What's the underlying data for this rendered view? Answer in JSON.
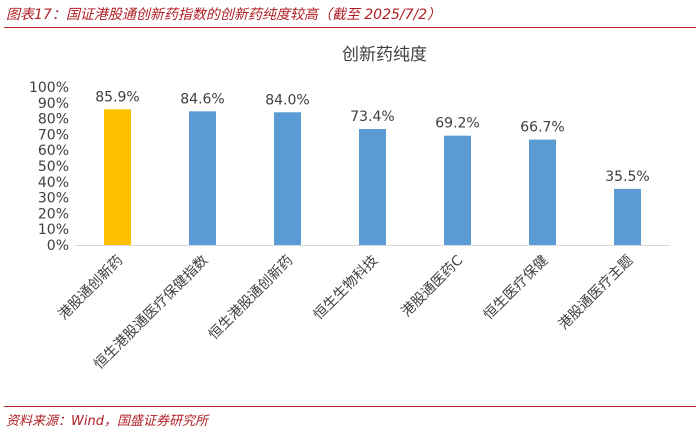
{
  "figure": {
    "caption": "图表17：国证港股通创新药指数的创新药纯度较高（截至 2025/7/2）",
    "source": "资料来源：Wind，国盛证券研究所"
  },
  "chart_data": {
    "type": "bar",
    "title": "创新药纯度",
    "categories": [
      "港股通创新药",
      "恒生港股通医疗保健指数",
      "恒生港股通创新药",
      "恒生生物科技",
      "港股通医药C",
      "恒生医疗保健",
      "港股通医疗主题"
    ],
    "values": [
      85.9,
      84.6,
      84.0,
      73.4,
      69.2,
      66.7,
      35.5
    ],
    "value_labels": [
      "85.9%",
      "84.6%",
      "84.0%",
      "73.4%",
      "69.2%",
      "66.7%",
      "35.5%"
    ],
    "ylim": [
      0,
      100
    ],
    "yticks": [
      "0%",
      "10%",
      "20%",
      "30%",
      "40%",
      "50%",
      "60%",
      "70%",
      "80%",
      "90%",
      "100%"
    ],
    "xlabel": "",
    "ylabel": "",
    "grid": false,
    "colors": {
      "highlight": "#FFC000",
      "default": "#5B9BD5"
    },
    "highlight_index": 0
  }
}
